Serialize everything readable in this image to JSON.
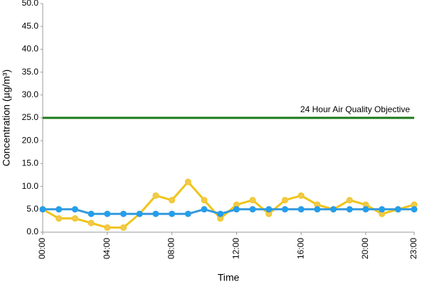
{
  "chart_data": {
    "type": "line",
    "x_label": "Time",
    "y_label": "Concentration (µg/m³)",
    "categories": [
      "00:00",
      null,
      null,
      null,
      "04:00",
      null,
      null,
      null,
      "08:00",
      null,
      null,
      null,
      "12:00",
      null,
      null,
      null,
      "16:00",
      null,
      null,
      null,
      "20:00",
      null,
      null,
      "23:00"
    ],
    "series": [
      {
        "color": "#f0c419",
        "marker_color": "#f2c94c",
        "values": [
          5,
          3,
          3,
          2,
          1,
          1,
          4,
          8,
          7,
          11,
          7,
          3,
          6,
          7,
          4,
          7,
          8,
          6,
          5,
          7,
          6,
          4,
          5,
          6
        ]
      },
      {
        "color": "#3399dd",
        "marker_color": "#1fa0f0",
        "values": [
          5,
          5,
          5,
          4,
          4,
          4,
          4,
          4,
          4,
          4,
          5,
          4,
          5,
          5,
          5,
          5,
          5,
          5,
          5,
          5,
          5,
          5,
          5,
          5
        ]
      }
    ],
    "reference_line": {
      "value": 25,
      "label": "24 Hour Air Quality Objective",
      "color": "#1a7a1a"
    },
    "ylim": [
      0,
      50
    ],
    "yticks": [
      {
        "value": 0,
        "label": "0.0"
      },
      {
        "value": 5,
        "label": "5.0"
      },
      {
        "value": 10,
        "label": "10.0"
      },
      {
        "value": 15,
        "label": "15.0"
      },
      {
        "value": 20,
        "label": "20.0"
      },
      {
        "value": 25,
        "label": "25.0"
      },
      {
        "value": 30,
        "label": "30.0"
      },
      {
        "value": 35,
        "label": "35.0"
      },
      {
        "value": 40,
        "label": "40.0"
      },
      {
        "value": 45,
        "label": "45.0"
      },
      {
        "value": 50,
        "label": "50.0"
      }
    ],
    "grid": false
  }
}
